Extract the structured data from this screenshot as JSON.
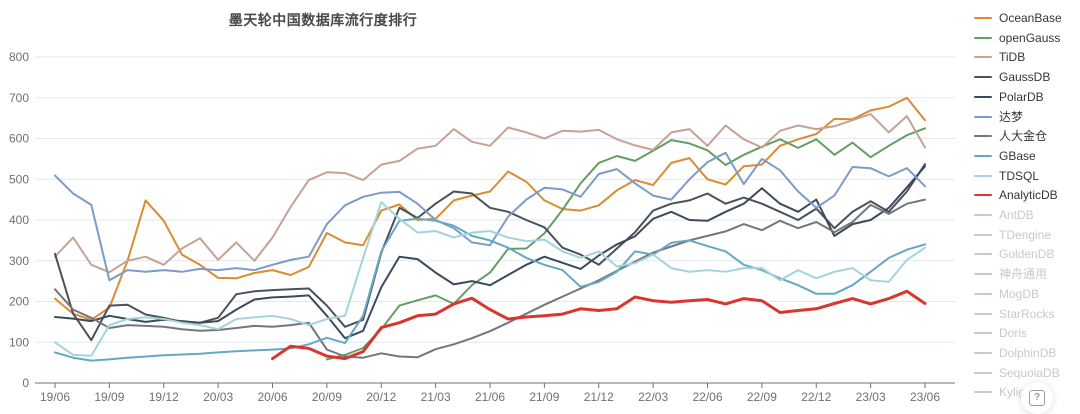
{
  "title": "墨天轮中国数据库流行度排行",
  "help_button": {
    "icon": "?"
  },
  "colors": {
    "grid": "#e2e7f1",
    "axis": "#6e7079",
    "tick_label": "#6e7079",
    "legend_active_text": "#333639",
    "legend_inactive": "#c6c9d0"
  },
  "legend": {
    "position": "right",
    "items": [
      {
        "label": "OceanBase",
        "color": "#dc8b33",
        "active": true
      },
      {
        "label": "openGauss",
        "color": "#649e62",
        "active": true
      },
      {
        "label": "TiDB",
        "color": "#c6a194",
        "active": true
      },
      {
        "label": "GaussDB",
        "color": "#4c5058",
        "active": true
      },
      {
        "label": "PolarDB",
        "color": "#3b4a5e",
        "active": true
      },
      {
        "label": "达梦",
        "color": "#7d9bc7",
        "active": true
      },
      {
        "label": "人大金仓",
        "color": "#73767d",
        "active": true
      },
      {
        "label": "GBase",
        "color": "#65a8c4",
        "active": true
      },
      {
        "label": "TDSQL",
        "color": "#a4d3dc",
        "active": true
      },
      {
        "label": "AnalyticDB",
        "color": "#d7372f",
        "active": true
      },
      {
        "label": "AntDB",
        "color": "#c6c9d0",
        "active": false
      },
      {
        "label": "TDengine",
        "color": "#c6c9d0",
        "active": false
      },
      {
        "label": "GoldenDB",
        "color": "#c6c9d0",
        "active": false
      },
      {
        "label": "神舟通用",
        "color": "#c6c9d0",
        "active": false
      },
      {
        "label": "MogDB",
        "color": "#c6c9d0",
        "active": false
      },
      {
        "label": "StarRocks",
        "color": "#c6c9d0",
        "active": false
      },
      {
        "label": "Doris",
        "color": "#c6c9d0",
        "active": false
      },
      {
        "label": "DolphinDB",
        "color": "#c6c9d0",
        "active": false
      },
      {
        "label": "SequoiaDB",
        "color": "#c6c9d0",
        "active": false
      },
      {
        "label": "Kyligence",
        "color": "#c6c9d0",
        "active": false
      }
    ]
  },
  "chart_data": {
    "type": "line",
    "title": "墨天轮中国数据库流行度排行",
    "xlabel": "",
    "ylabel": "",
    "ylim": [
      0,
      800
    ],
    "y_ticks": [
      0,
      100,
      200,
      300,
      400,
      500,
      600,
      700,
      800
    ],
    "grid": true,
    "legend_position": "right",
    "x": [
      "19/06",
      "19/07",
      "19/08",
      "19/09",
      "19/10",
      "19/11",
      "19/12",
      "20/01",
      "20/02",
      "20/03",
      "20/04",
      "20/05",
      "20/06",
      "20/07",
      "20/08",
      "20/09",
      "20/10",
      "20/11",
      "20/12",
      "21/01",
      "21/02",
      "21/03",
      "21/04",
      "21/05",
      "21/06",
      "21/07",
      "21/08",
      "21/09",
      "21/10",
      "21/11",
      "21/12",
      "22/01",
      "22/02",
      "22/03",
      "22/04",
      "22/05",
      "22/06",
      "22/07",
      "22/08",
      "22/09",
      "22/10",
      "22/11",
      "22/12",
      "23/01",
      "23/02",
      "23/03",
      "23/04",
      "23/05",
      "23/06"
    ],
    "x_tick_labels": [
      "19/06",
      "19/09",
      "19/12",
      "20/03",
      "20/06",
      "20/09",
      "20/12",
      "21/03",
      "21/06",
      "21/09",
      "21/12",
      "22/03",
      "22/06",
      "22/09",
      "22/12",
      "23/03",
      "23/06"
    ],
    "series": [
      {
        "name": "OceanBase",
        "color": "#dc8b33",
        "width": 2,
        "values": [
          207,
          170,
          155,
          185,
          300,
          448,
          398,
          315,
          290,
          258,
          257,
          270,
          277,
          265,
          285,
          368,
          345,
          338,
          423,
          438,
          400,
          403,
          448,
          460,
          470,
          519,
          494,
          448,
          427,
          423,
          436,
          473,
          498,
          486,
          540,
          552,
          500,
          487,
          532,
          536,
          582,
          598,
          611,
          648,
          647,
          669,
          678,
          700,
          645
        ]
      },
      {
        "name": "openGauss",
        "color": "#649e62",
        "width": 2,
        "values": [
          null,
          null,
          null,
          null,
          null,
          null,
          null,
          null,
          null,
          null,
          null,
          null,
          null,
          null,
          null,
          58,
          69,
          86,
          132,
          190,
          203,
          215,
          194,
          240,
          271,
          329,
          330,
          367,
          425,
          490,
          540,
          557,
          545,
          570,
          596,
          588,
          571,
          535,
          560,
          580,
          598,
          577,
          598,
          560,
          590,
          554,
          582,
          608,
          625
        ]
      },
      {
        "name": "TiDB",
        "color": "#c6a194",
        "width": 2,
        "values": [
          310,
          357,
          290,
          272,
          300,
          310,
          290,
          330,
          355,
          302,
          345,
          300,
          357,
          432,
          498,
          517,
          515,
          498,
          536,
          545,
          575,
          582,
          623,
          592,
          582,
          627,
          615,
          600,
          619,
          617,
          621,
          598,
          583,
          572,
          615,
          623,
          582,
          632,
          598,
          578,
          619,
          632,
          623,
          630,
          645,
          660,
          615,
          655,
          578
        ]
      },
      {
        "name": "GaussDB",
        "color": "#4c5058",
        "width": 2,
        "values": [
          317,
          170,
          105,
          190,
          192,
          168,
          160,
          150,
          148,
          160,
          218,
          225,
          228,
          230,
          232,
          190,
          138,
          155,
          320,
          430,
          405,
          440,
          470,
          465,
          430,
          420,
          400,
          382,
          332,
          315,
          290,
          330,
          370,
          423,
          440,
          448,
          465,
          440,
          455,
          440,
          420,
          400,
          428,
          380,
          420,
          446,
          420,
          470,
          537
        ]
      },
      {
        "name": "PolarDB",
        "color": "#3b4a5e",
        "width": 2,
        "values": [
          162,
          158,
          152,
          165,
          157,
          150,
          155,
          152,
          148,
          152,
          180,
          205,
          210,
          212,
          215,
          165,
          110,
          128,
          235,
          310,
          304,
          271,
          242,
          250,
          240,
          265,
          290,
          310,
          295,
          280,
          313,
          340,
          360,
          403,
          420,
          400,
          398,
          420,
          440,
          478,
          440,
          420,
          450,
          361,
          390,
          400,
          430,
          480,
          532
        ]
      },
      {
        "name": "达梦",
        "color": "#7d9bc7",
        "width": 2,
        "values": [
          509,
          465,
          437,
          252,
          277,
          273,
          277,
          273,
          280,
          277,
          282,
          277,
          290,
          302,
          310,
          390,
          436,
          457,
          467,
          469,
          440,
          400,
          380,
          345,
          338,
          408,
          450,
          479,
          475,
          457,
          513,
          525,
          490,
          460,
          450,
          500,
          542,
          565,
          488,
          550,
          522,
          470,
          430,
          460,
          530,
          527,
          507,
          527,
          483
        ]
      },
      {
        "name": "人大金仓",
        "color": "#73767d",
        "width": 2,
        "values": [
          230,
          180,
          160,
          135,
          142,
          140,
          138,
          132,
          128,
          130,
          135,
          140,
          138,
          142,
          148,
          82,
          65,
          62,
          73,
          65,
          63,
          83,
          95,
          110,
          127,
          148,
          170,
          192,
          212,
          232,
          252,
          275,
          298,
          320,
          335,
          350,
          361,
          372,
          390,
          375,
          398,
          380,
          395,
          370,
          395,
          437,
          415,
          440,
          450
        ]
      },
      {
        "name": "GBase",
        "color": "#65a8c4",
        "width": 2,
        "values": [
          75,
          62,
          55,
          58,
          62,
          65,
          68,
          70,
          72,
          75,
          78,
          80,
          82,
          85,
          95,
          111,
          98,
          165,
          323,
          398,
          403,
          398,
          386,
          361,
          350,
          332,
          307,
          290,
          277,
          236,
          248,
          273,
          323,
          315,
          344,
          350,
          336,
          323,
          290,
          277,
          257,
          240,
          219,
          219,
          240,
          273,
          307,
          327,
          340
        ]
      },
      {
        "name": "TDSQL",
        "color": "#a4d3dc",
        "width": 2,
        "values": [
          100,
          69,
          67,
          142,
          157,
          161,
          157,
          148,
          142,
          132,
          157,
          161,
          165,
          157,
          142,
          157,
          165,
          307,
          444,
          403,
          369,
          373,
          357,
          369,
          373,
          357,
          348,
          352,
          323,
          307,
          323,
          286,
          294,
          315,
          282,
          273,
          277,
          273,
          282,
          282,
          252,
          277,
          257,
          273,
          282,
          252,
          248,
          302,
          332
        ]
      },
      {
        "name": "AnalyticDB",
        "color": "#d7372f",
        "width": 3,
        "values": [
          null,
          null,
          null,
          null,
          null,
          null,
          null,
          null,
          null,
          null,
          null,
          null,
          60,
          90,
          85,
          66,
          60,
          77,
          136,
          148,
          165,
          169,
          194,
          208,
          180,
          157,
          162,
          165,
          169,
          182,
          178,
          182,
          211,
          202,
          198,
          202,
          205,
          194,
          207,
          202,
          173,
          178,
          182,
          195,
          207,
          194,
          207,
          225,
          195
        ]
      }
    ],
    "disabled_series": [
      "AntDB",
      "TDengine",
      "GoldenDB",
      "神舟通用",
      "MogDB",
      "StarRocks",
      "Doris",
      "DolphinDB",
      "SequoiaDB",
      "Kyligence"
    ]
  }
}
